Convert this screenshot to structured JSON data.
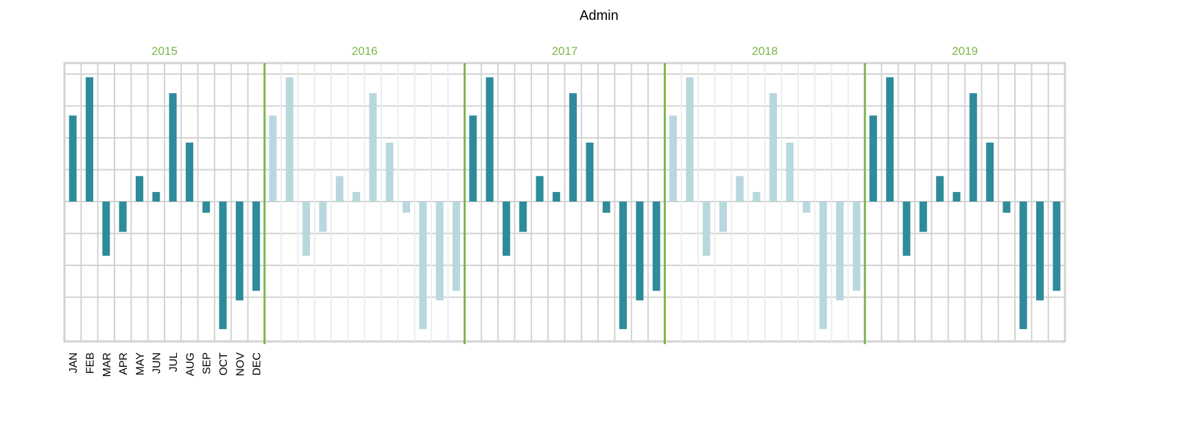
{
  "chart_data": {
    "type": "bar",
    "title": "Admin",
    "xlabel": "",
    "ylabel": "",
    "grid": true,
    "legend": "none",
    "years": [
      "2015",
      "2016",
      "2017",
      "2018",
      "2019"
    ],
    "highlighted_years": [
      "2015",
      "2017",
      "2019"
    ],
    "categories": [
      "JAN",
      "FEB",
      "MAR",
      "APR",
      "MAY",
      "JUN",
      "JUL",
      "AUG",
      "SEP",
      "OCT",
      "NOV",
      "DEC"
    ],
    "series": [
      {
        "values": [
          54,
          78,
          -34,
          -19,
          16,
          6,
          68,
          37,
          -7,
          -80,
          -62,
          -56
        ]
      },
      {
        "values": [
          54,
          78,
          -34,
          -19,
          16,
          6,
          68,
          37,
          -7,
          -80,
          -62,
          -56
        ]
      },
      {
        "values": [
          54,
          78,
          -34,
          -19,
          16,
          6,
          68,
          37,
          -7,
          -80,
          -62,
          -56
        ]
      },
      {
        "values": [
          54,
          78,
          -34,
          -19,
          16,
          6,
          68,
          37,
          -7,
          -80,
          -62,
          -56
        ]
      },
      {
        "values": [
          54,
          78,
          -34,
          -19,
          16,
          6,
          68,
          37,
          -7,
          -80,
          -62,
          -56
        ]
      }
    ],
    "ylim": [
      -88,
      86
    ],
    "colors": {
      "bar": "#2e8b9a",
      "bar_faded": "#b8d8de",
      "grid": "#d2d2d2",
      "grid_faded": "#ececec",
      "year_separator": "#7ab648",
      "year_label": "#7ab648"
    }
  }
}
